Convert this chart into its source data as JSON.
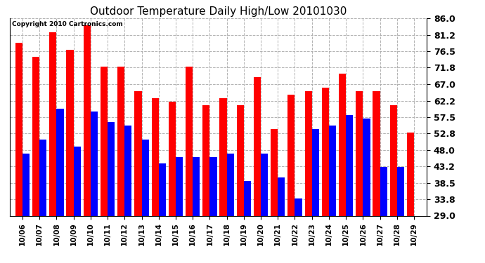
{
  "title": "Outdoor Temperature Daily High/Low 20101030",
  "copyright": "Copyright 2010 Cartronics.com",
  "dates": [
    "10/06",
    "10/07",
    "10/08",
    "10/09",
    "10/10",
    "10/11",
    "10/12",
    "10/13",
    "10/14",
    "10/15",
    "10/16",
    "10/17",
    "10/18",
    "10/19",
    "10/20",
    "10/21",
    "10/22",
    "10/23",
    "10/24",
    "10/25",
    "10/26",
    "10/27",
    "10/28",
    "10/29"
  ],
  "highs": [
    79.0,
    75.0,
    82.0,
    77.0,
    84.0,
    72.0,
    72.0,
    65.0,
    63.0,
    62.0,
    72.0,
    61.0,
    63.0,
    61.0,
    69.0,
    54.0,
    64.0,
    65.0,
    66.0,
    70.0,
    65.0,
    65.0,
    61.0,
    53.0
  ],
  "lows": [
    47.0,
    51.0,
    60.0,
    49.0,
    59.0,
    56.0,
    55.0,
    51.0,
    44.0,
    46.0,
    46.0,
    46.0,
    47.0,
    39.0,
    47.0,
    40.0,
    34.0,
    54.0,
    55.0,
    58.0,
    57.0,
    43.0,
    43.0,
    29.0
  ],
  "high_color": "#ff0000",
  "low_color": "#0000ff",
  "bg_color": "#ffffff",
  "plot_bg_color": "#ffffff",
  "grid_color": "#aaaaaa",
  "ylim_min": 29.0,
  "ylim_max": 86.0,
  "yticks": [
    29.0,
    33.8,
    38.5,
    43.2,
    48.0,
    52.8,
    57.5,
    62.2,
    67.0,
    71.8,
    76.5,
    81.2,
    86.0
  ],
  "bar_width": 0.42,
  "title_fontsize": 11,
  "ytick_fontsize": 9,
  "xtick_fontsize": 7.5
}
